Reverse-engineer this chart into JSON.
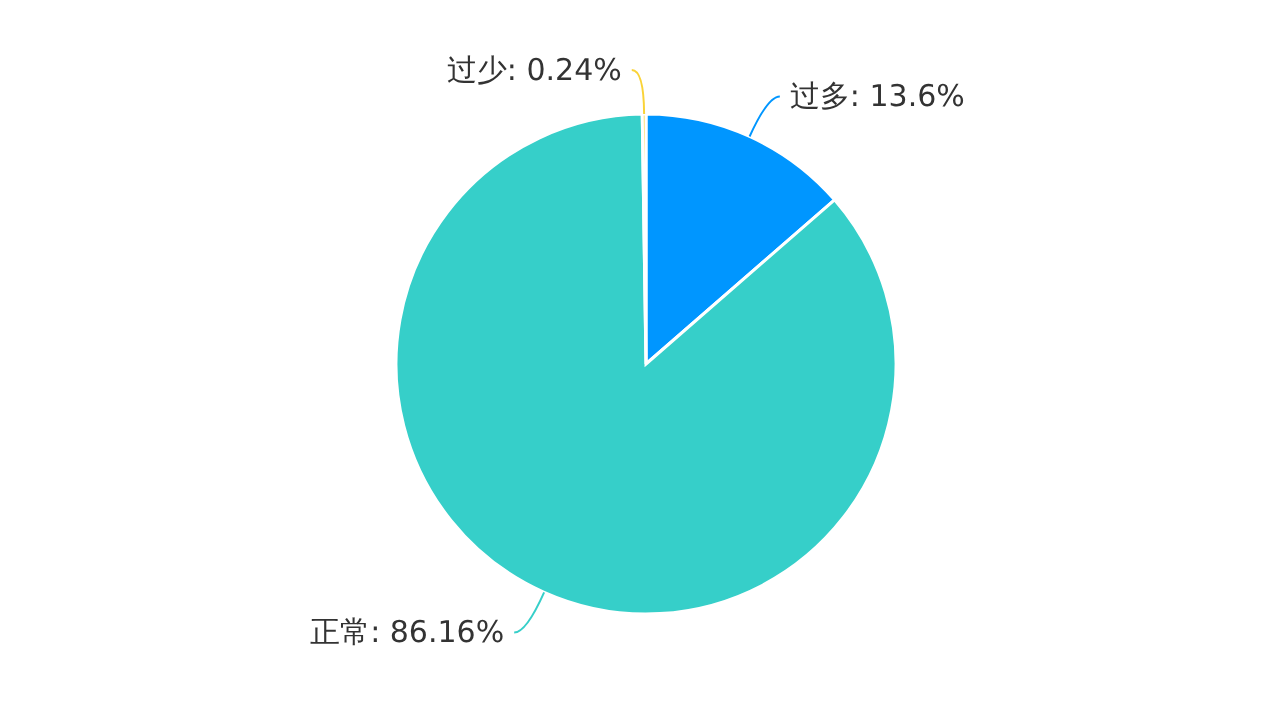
{
  "chart_data": {
    "type": "pie",
    "categories": [
      "过多",
      "正常",
      "过少"
    ],
    "values": [
      13.6,
      86.16,
      0.24
    ],
    "colors": [
      "#0096ff",
      "#36cfc9",
      "#fad337"
    ],
    "value_labels": [
      ": 13.6%",
      ": 86.16%",
      ": 0.24%"
    ],
    "legend": false
  }
}
